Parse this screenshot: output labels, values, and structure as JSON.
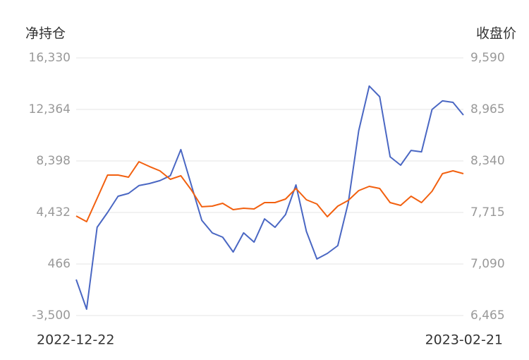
{
  "chart_data": {
    "type": "line",
    "y_title": "净持仓",
    "y2_title": "收盘价",
    "categories": [
      "2022-12-22",
      null,
      null,
      null,
      null,
      null,
      null,
      null,
      null,
      null,
      null,
      null,
      null,
      null,
      null,
      null,
      null,
      null,
      null,
      null,
      null,
      null,
      null,
      null,
      null,
      null,
      null,
      null,
      null,
      null,
      null,
      null,
      null,
      null,
      null,
      null,
      null,
      "2023-02-21"
    ],
    "ylim": [
      -3500,
      16330
    ],
    "yticks": [
      {
        "value": -3500,
        "label": "-3,500"
      },
      466,
      {
        "value": 4432,
        "label": "4,432"
      },
      {
        "value": 8398,
        "label": "8,398"
      },
      {
        "value": 12364,
        "label": "12,364"
      },
      {
        "value": 16330,
        "label": "16,330"
      }
    ],
    "y2lim": [
      6465,
      9590
    ],
    "y2ticks": [
      {
        "value": 6465,
        "label": "6,465"
      },
      {
        "value": 7090,
        "label": "7,090"
      },
      {
        "value": 7715,
        "label": "7,715"
      },
      {
        "value": 8340,
        "label": "8,340"
      },
      {
        "value": 8965,
        "label": "8,965"
      },
      {
        "value": 9590,
        "label": "9,590"
      }
    ],
    "grid": true,
    "series": [
      {
        "color": "#4a67c3",
        "values": [
          -730,
          -3010,
          3290,
          4430,
          5680,
          5900,
          6500,
          6660,
          6880,
          7260,
          9270,
          6550,
          3830,
          2860,
          2530,
          1390,
          2860,
          2150,
          3940,
          3290,
          4270,
          6550,
          2970,
          850,
          1280,
          1880,
          5190,
          10730,
          14160,
          13340,
          8720,
          8070,
          9210,
          9100,
          12360,
          13020,
          12910,
          11930
        ]
      },
      {
        "color": "#f2600f",
        "axis": "y2",
        "values": [
          7672,
          7604,
          7886,
          8169,
          8169,
          8143,
          8331,
          8272,
          8220,
          8117,
          8160,
          7989,
          7784,
          7792,
          7826,
          7749,
          7766,
          7758,
          7835,
          7835,
          7878,
          8006,
          7869,
          7818,
          7664,
          7792,
          7861,
          7980,
          8032,
          8006,
          7835,
          7801,
          7912,
          7835,
          7972,
          8186,
          8220,
          8186
        ]
      }
    ]
  }
}
